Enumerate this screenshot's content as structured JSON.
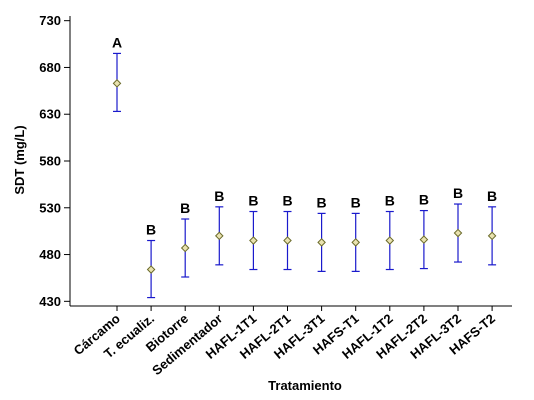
{
  "chart_data": {
    "type": "scatter",
    "xlabel": "Tratamiento",
    "ylabel": "SDT (mg/L)",
    "ylim": [
      425,
      735
    ],
    "y_ticks": [
      430,
      480,
      530,
      580,
      630,
      680,
      730
    ],
    "grid": false,
    "categories": [
      "Cárcamo",
      "T. ecualiz.",
      "Biotorre",
      "Sedimentador",
      "HAFL-1T1",
      "HAFL-2T1",
      "HAFL-3T1",
      "HAFS-T1",
      "HAFL-1T2",
      "HAFL-2T2",
      "HAFL-3T2",
      "HAFS-T2"
    ],
    "means": [
      663,
      464,
      487,
      500,
      495,
      495,
      493,
      493,
      495,
      496,
      503,
      500
    ],
    "lower": [
      633,
      434,
      456,
      469,
      464,
      464,
      462,
      462,
      464,
      465,
      472,
      469
    ],
    "upper": [
      695,
      495,
      518,
      531,
      526,
      526,
      524,
      524,
      526,
      527,
      534,
      531
    ],
    "group_labels": [
      "A",
      "B",
      "B",
      "B",
      "B",
      "B",
      "B",
      "B",
      "B",
      "B",
      "B",
      "B"
    ],
    "colors": {
      "error_bar": "#1a1acc",
      "marker_stroke": "#6b6b2a",
      "marker_fill": "#e9e2b0",
      "axis": "#000000"
    }
  }
}
